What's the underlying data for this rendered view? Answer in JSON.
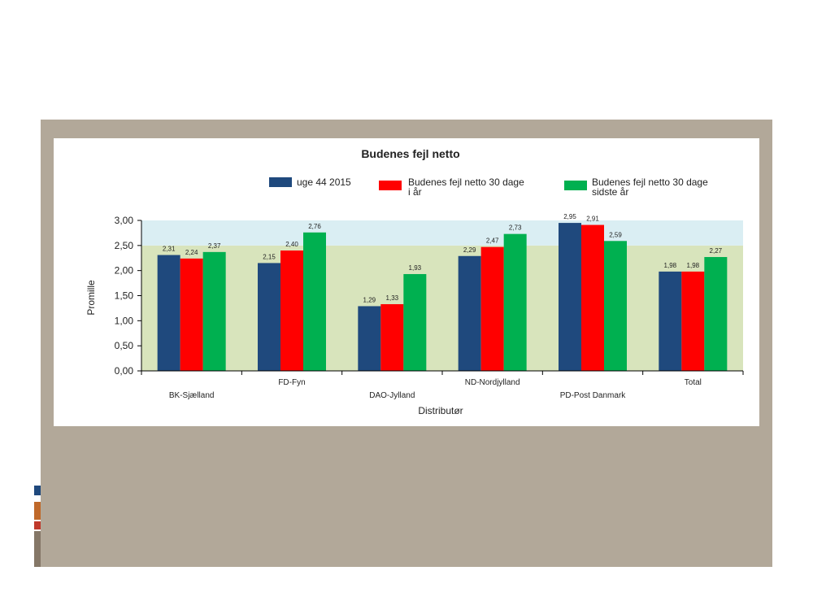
{
  "chart_data": {
    "type": "bar",
    "title": "Budenes fejl netto",
    "xlabel": "Distributør",
    "ylabel": "Promille",
    "ylim": [
      0,
      3
    ],
    "yticks": [
      "0,00",
      "0,50",
      "1,00",
      "1,50",
      "2,00",
      "2,50",
      "3,00"
    ],
    "categories": [
      "BK-Sjælland",
      "FD-Fyn",
      "DAO-Jylland",
      "ND-Nordjylland",
      "PD-Post Danmark",
      "Total"
    ],
    "bands": [
      {
        "from": 0,
        "to": 2.5,
        "color": "#d8e4bc"
      },
      {
        "from": 2.5,
        "to": 3.0,
        "color": "#daeef3"
      }
    ],
    "legend_placement": "top",
    "grid": false,
    "series": [
      {
        "name": "uge 44 2015",
        "color": "#1f497d",
        "values": [
          2.31,
          2.15,
          1.29,
          2.29,
          2.95,
          1.98
        ],
        "labels": [
          "2,31",
          "2,15",
          "1,29",
          "2,29",
          "2,95",
          "1,98"
        ]
      },
      {
        "name": "Budenes fejl netto 30 dage i år",
        "color": "#ff0000",
        "values": [
          2.24,
          2.4,
          1.33,
          2.47,
          2.91,
          1.98
        ],
        "labels": [
          "2,24",
          "2,40",
          "1,33",
          "2,47",
          "2,91",
          "1,98"
        ]
      },
      {
        "name": "Budenes fejl netto 30 dage sidste år",
        "color": "#00b050",
        "values": [
          2.37,
          2.76,
          1.93,
          2.73,
          2.59,
          2.27
        ],
        "labels": [
          "2,37",
          "2,76",
          "1,93",
          "2,73",
          "2,59",
          "2,27"
        ]
      }
    ]
  },
  "legend": {
    "s0": "uge 44 2015",
    "s1_line1": "Budenes fejl netto 30 dage",
    "s1_line2": "i år",
    "s2_line1": "Budenes fejl netto 30 dage",
    "s2_line2": "sidste år"
  },
  "slide": {
    "panel_color": "#b2a899",
    "accent_colors": [
      "#1f497d",
      "#c0692a",
      "#c0392b",
      "#857767"
    ]
  }
}
